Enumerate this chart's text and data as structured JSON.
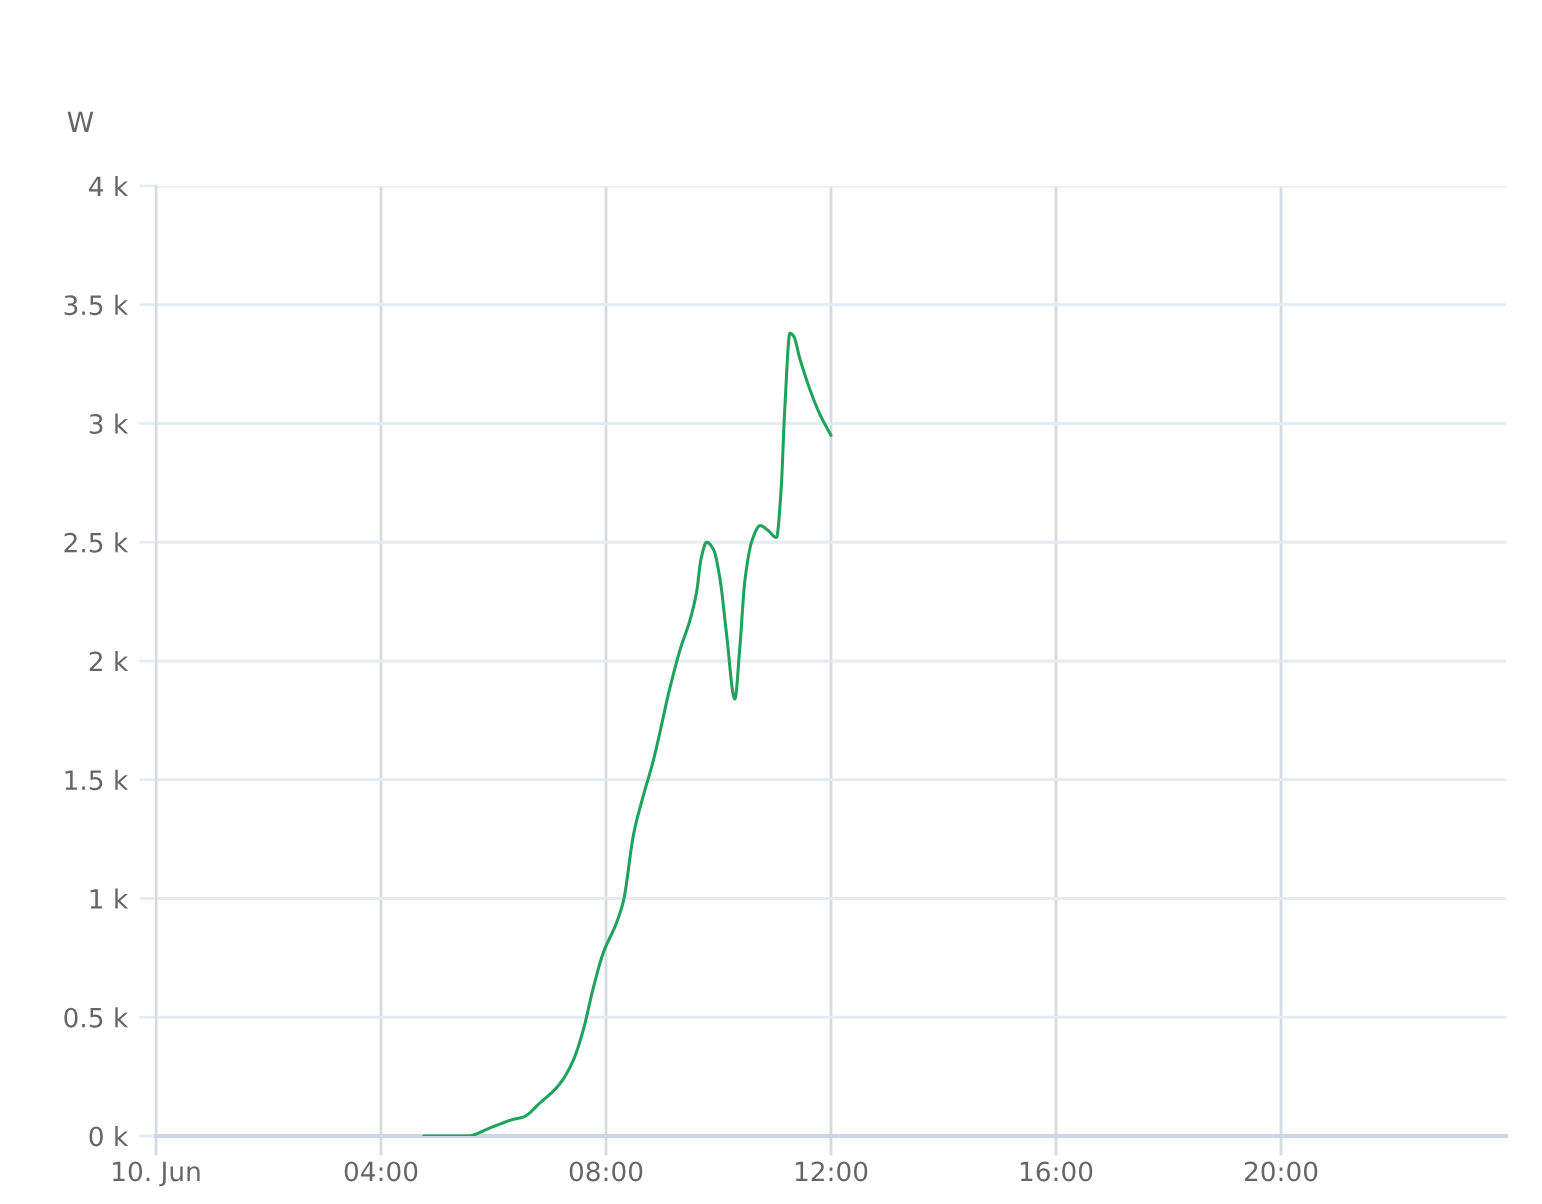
{
  "chart_data": {
    "type": "line",
    "ylabel": "W",
    "x": [
      4.76,
      5.52,
      6.0,
      6.35,
      6.53,
      6.83,
      7.18,
      7.42,
      7.6,
      7.77,
      7.95,
      8.19,
      8.31,
      8.49,
      8.66,
      8.84,
      9.14,
      9.32,
      9.49,
      9.61,
      9.69,
      9.79,
      9.91,
      10.03,
      10.14,
      10.29,
      10.38,
      10.47,
      10.6,
      10.74,
      10.88,
      11.03,
      11.11,
      11.18,
      11.27,
      11.33,
      11.45,
      11.63,
      11.8,
      12.0
    ],
    "series": [
      {
        "color": "#1fa35c",
        "values": [
          0,
          0,
          40,
          70,
          80,
          140,
          220,
          320,
          450,
          620,
          770,
          900,
          990,
          1270,
          1430,
          1580,
          1890,
          2050,
          2170,
          2290,
          2430,
          2500,
          2470,
          2340,
          2120,
          1840,
          2060,
          2340,
          2510,
          2570,
          2550,
          2520,
          2710,
          3070,
          3380,
          3370,
          3270,
          3140,
          3040,
          2950
        ]
      }
    ],
    "xlim": [
      0,
      24
    ],
    "xticks": [
      {
        "value": 0,
        "label": "10. Jun"
      },
      {
        "value": 4,
        "label": "04:00"
      },
      {
        "value": 8,
        "label": "08:00"
      },
      {
        "value": 12,
        "label": "12:00"
      },
      {
        "value": 16,
        "label": "16:00"
      },
      {
        "value": 20,
        "label": "20:00"
      }
    ],
    "ylim": [
      0,
      4000
    ],
    "yticks": [
      {
        "value": 0,
        "label": "0 k"
      },
      {
        "value": 500,
        "label": "0.5 k"
      },
      {
        "value": 1000,
        "label": "1 k"
      },
      {
        "value": 1500,
        "label": "1.5 k"
      },
      {
        "value": 2000,
        "label": "2 k"
      },
      {
        "value": 2500,
        "label": "2.5 k"
      },
      {
        "value": 3000,
        "label": "3 k"
      },
      {
        "value": 3500,
        "label": "3.5 k"
      },
      {
        "value": 4000,
        "label": "4 k"
      }
    ],
    "grid": true,
    "line_style": "solid"
  }
}
